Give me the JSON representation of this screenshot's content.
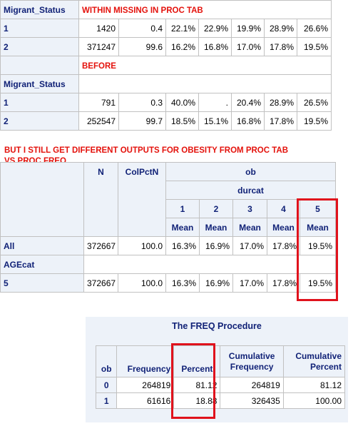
{
  "top_table": {
    "row_header_label": "Migrant_Status",
    "caption_within": "WITHIN MISSING IN PROC TAB",
    "caption_before": "BEFORE",
    "within_rows": [
      {
        "label": "1",
        "values": [
          "1420",
          "0.4",
          "22.1%",
          "22.9%",
          "19.9%",
          "28.9%",
          "26.6%"
        ]
      },
      {
        "label": "2",
        "values": [
          "371247",
          "99.6",
          "16.2%",
          "16.8%",
          "17.0%",
          "17.8%",
          "19.5%"
        ]
      }
    ],
    "before_rows": [
      {
        "label": "1",
        "values": [
          "791",
          "0.3",
          "40.0%",
          ".",
          "20.4%",
          "28.9%",
          "26.5%"
        ]
      },
      {
        "label": "2",
        "values": [
          "252547",
          "99.7",
          "18.5%",
          "15.1%",
          "16.8%",
          "17.8%",
          "19.5%"
        ]
      }
    ]
  },
  "note": {
    "line1": "BUT I STILL GET DIFFERENT OUTPUTS FOR OBESITY FROM PROC TAB",
    "line2": "VS PROC FREQ"
  },
  "tab_table": {
    "col_n": "N",
    "col_colpctn": "ColPctN",
    "group_ob": "ob",
    "group_durcat": "durcat",
    "durcat_levels": [
      "1",
      "2",
      "3",
      "4",
      "5"
    ],
    "stat_label": "Mean",
    "row_all": {
      "label": "All",
      "values": [
        "372667",
        "100.0",
        "16.3%",
        "16.9%",
        "17.0%",
        "17.8%",
        "19.5%"
      ]
    },
    "row_agecat_label": "AGEcat",
    "row_5": {
      "label": "5",
      "values": [
        "372667",
        "100.0",
        "16.3%",
        "16.9%",
        "17.0%",
        "17.8%",
        "19.5%"
      ]
    }
  },
  "freq": {
    "title": "The FREQ Procedure",
    "headers": {
      "ob": "ob",
      "frequency": "Frequency",
      "percent": "Percent",
      "cum_freq": "Cumulative Frequency",
      "cum_pct": "Cumulative Percent"
    },
    "rows": [
      {
        "ob": "0",
        "frequency": "264819",
        "percent": "81.12",
        "cum_freq": "264819",
        "cum_pct": "81.12"
      },
      {
        "ob": "1",
        "frequency": "61616",
        "percent": "18.88",
        "cum_freq": "326435",
        "cum_pct": "100.00"
      }
    ]
  },
  "colors": {
    "header_bg": "#edf2f9",
    "header_text": "#112277",
    "annotation_red": "#e4120c",
    "border": "#c1c1c1"
  }
}
